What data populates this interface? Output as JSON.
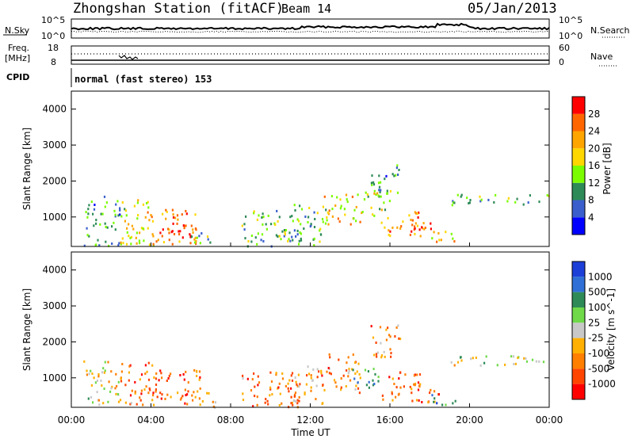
{
  "header": {
    "station_title": "Zhongshan Station (fitACF)",
    "beam_label": "Beam 14",
    "date": "05/Jan/2013"
  },
  "time_axis": {
    "ticks": [
      "00:00",
      "04:00",
      "08:00",
      "12:00",
      "16:00",
      "20:00",
      "00:00"
    ],
    "label": "Time UT"
  },
  "summary": {
    "nsky_label": "N.Sky",
    "nsky_ticks": [
      "10^5",
      "10^0"
    ],
    "nsearch_label": "N.Search",
    "nsearch_ticks": [
      "10^5",
      "10^0"
    ],
    "freq_label_1": "Freq.",
    "freq_label_2": "[MHz]",
    "freq_ticks": [
      "18",
      "8"
    ],
    "nave_label": "Nave",
    "nave_ticks": [
      "60",
      "0"
    ],
    "cpid_label": "CPID",
    "cpid_text": "normal (fast stereo) 153"
  },
  "colors": {
    "power_scale": [
      "#0000ff",
      "#3a5fcd",
      "#2e8b57",
      "#7cfc00",
      "#ffd700",
      "#ffa500",
      "#ff6600",
      "#ff0000"
    ],
    "velocity_scale": [
      "#1c3fd8",
      "#2f6fd6",
      "#2e8b57",
      "#6fd94a",
      "#c8c8c8",
      "#ffb000",
      "#ff7f00",
      "#ff4500",
      "#ff0000"
    ]
  },
  "chart_data": [
    {
      "type": "heatmap",
      "name": "power",
      "ylabel": "Slant Range [km]",
      "yticks": [
        "1000",
        "2000",
        "3000",
        "4000"
      ],
      "ylim": [
        180,
        4500
      ],
      "xlim": [
        "00:00",
        "24:00"
      ],
      "colorbar_label": "Power [dB]",
      "colorbar_ticks": [
        "4",
        "8",
        "12",
        "16",
        "20",
        "24",
        "28"
      ],
      "colorbar_range": [
        0,
        32
      ],
      "regions": [
        {
          "t0": 0.6,
          "t1": 2.4,
          "r0": 180,
          "r1": 1600,
          "level": 0.3
        },
        {
          "t0": 2.4,
          "t1": 4.2,
          "r0": 200,
          "r1": 1500,
          "level": 0.55
        },
        {
          "t0": 3.8,
          "t1": 6.3,
          "r0": 250,
          "r1": 1250,
          "level": 0.75
        },
        {
          "t0": 4.8,
          "t1": 6.2,
          "r0": 300,
          "r1": 900,
          "level": 0.9
        },
        {
          "t0": 6.0,
          "t1": 7.0,
          "r0": 200,
          "r1": 700,
          "level": 0.35
        },
        {
          "t0": 8.5,
          "t1": 11.5,
          "r0": 200,
          "r1": 1200,
          "level": 0.4
        },
        {
          "t0": 11.0,
          "t1": 12.8,
          "r0": 200,
          "r1": 1400,
          "level": 0.35
        },
        {
          "t0": 12.5,
          "t1": 14.5,
          "r0": 800,
          "r1": 1650,
          "level": 0.6
        },
        {
          "t0": 14.5,
          "t1": 16.0,
          "r0": 1000,
          "r1": 1800,
          "level": 0.55
        },
        {
          "t0": 15.0,
          "t1": 16.5,
          "r0": 1600,
          "r1": 2500,
          "level": 0.3
        },
        {
          "t0": 15.5,
          "t1": 17.5,
          "r0": 500,
          "r1": 1200,
          "level": 0.7
        },
        {
          "t0": 17.0,
          "t1": 18.5,
          "r0": 400,
          "r1": 900,
          "level": 0.8
        },
        {
          "t0": 18.0,
          "t1": 19.2,
          "r0": 300,
          "r1": 700,
          "level": 0.6
        },
        {
          "t0": 19.0,
          "t1": 24.0,
          "r0": 1350,
          "r1": 1650,
          "level": 0.35
        }
      ]
    },
    {
      "type": "heatmap",
      "name": "velocity",
      "ylabel": "Slant Range [km]",
      "yticks": [
        "1000",
        "2000",
        "3000",
        "4000"
      ],
      "ylim": [
        180,
        4500
      ],
      "xlim": [
        "00:00",
        "24:00"
      ],
      "colorbar_label": "Velocity [m s^-1]",
      "colorbar_ticks": [
        "1000",
        "500",
        "100",
        "25",
        "-25",
        "-100",
        "-500",
        "-1000"
      ],
      "regions": [
        {
          "t0": 0.6,
          "t1": 2.4,
          "r0": 200,
          "r1": 1500,
          "level": 0.5
        },
        {
          "t0": 2.4,
          "t1": 4.5,
          "r0": 250,
          "r1": 1450,
          "level": 0.75
        },
        {
          "t0": 4.0,
          "t1": 6.5,
          "r0": 300,
          "r1": 1250,
          "level": 0.8
        },
        {
          "t0": 6.0,
          "t1": 7.2,
          "r0": 200,
          "r1": 700,
          "level": 0.6
        },
        {
          "t0": 8.5,
          "t1": 11.5,
          "r0": 200,
          "r1": 1200,
          "level": 0.75
        },
        {
          "t0": 11.0,
          "t1": 12.8,
          "r0": 300,
          "r1": 1400,
          "level": 0.7
        },
        {
          "t0": 12.5,
          "t1": 14.5,
          "r0": 600,
          "r1": 1700,
          "level": 0.7
        },
        {
          "t0": 14.0,
          "t1": 15.5,
          "r0": 700,
          "r1": 1300,
          "level": 0.3
        },
        {
          "t0": 15.0,
          "t1": 16.5,
          "r0": 1600,
          "r1": 2550,
          "level": 0.7
        },
        {
          "t0": 15.5,
          "t1": 17.5,
          "r0": 400,
          "r1": 1200,
          "level": 0.78
        },
        {
          "t0": 17.0,
          "t1": 18.5,
          "r0": 300,
          "r1": 900,
          "level": 0.75
        },
        {
          "t0": 18.0,
          "t1": 19.3,
          "r0": 250,
          "r1": 600,
          "level": 0.25
        },
        {
          "t0": 19.0,
          "t1": 24.0,
          "r0": 1350,
          "r1": 1650,
          "level": 0.5
        }
      ]
    }
  ]
}
